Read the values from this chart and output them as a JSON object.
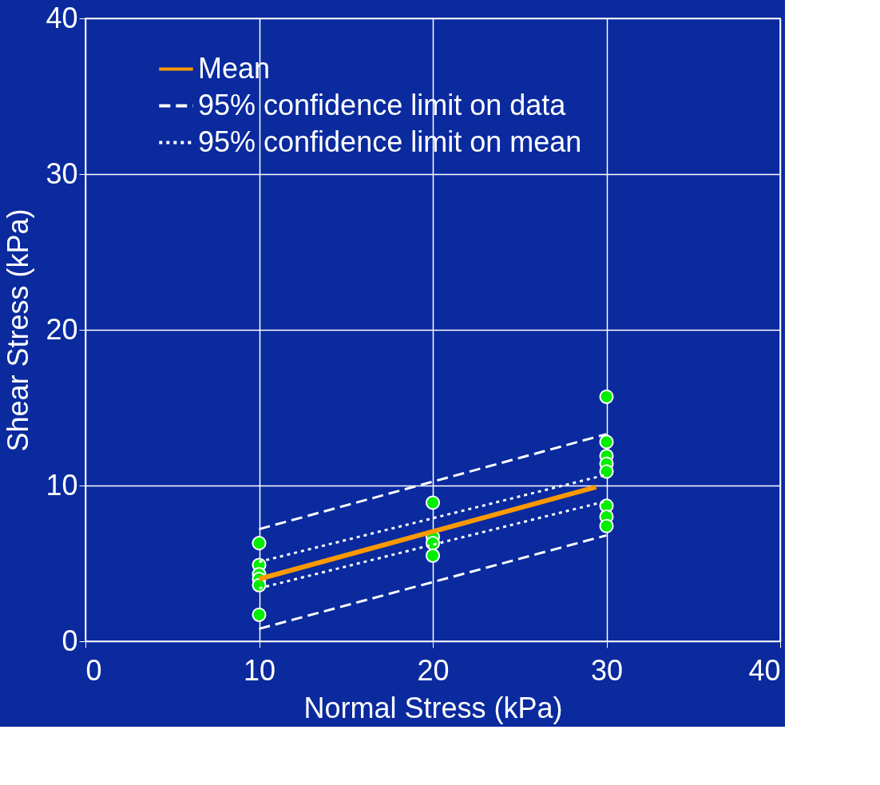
{
  "chart_data": {
    "type": "scatter",
    "xlabel": "Normal Stress (kPa)",
    "ylabel": "Shear Stress (kPa)",
    "xlim": [
      0,
      40
    ],
    "ylim": [
      0,
      40
    ],
    "xticks": [
      0,
      10,
      20,
      30,
      40
    ],
    "yticks": [
      0,
      10,
      20,
      30,
      40
    ],
    "grid": true,
    "legend": "top left",
    "marker": "circle",
    "series": [
      {
        "color": "#00ee00",
        "x": [
          10,
          10,
          10,
          10,
          10,
          10,
          20,
          20,
          20,
          20,
          30,
          30,
          30,
          30,
          30,
          30,
          30,
          30
        ],
        "values": [
          6.3,
          4.9,
          4.3,
          4.0,
          3.6,
          1.7,
          8.9,
          6.7,
          6.3,
          5.5,
          15.7,
          12.8,
          11.9,
          11.4,
          10.9,
          8.7,
          8.0,
          7.4
        ]
      },
      {
        "type": "line",
        "name": "Mean",
        "color": "#ff9900",
        "line_style": "solid",
        "marker": "none",
        "x": [
          10,
          29.4
        ],
        "values": [
          4.0,
          9.9
        ]
      },
      {
        "type": "line",
        "name": "95% confidence limit on data",
        "color": "#ffffff",
        "line_style": "dashed",
        "marker": "none",
        "x": [
          10,
          30
        ],
        "values": [
          7.2,
          13.3
        ]
      },
      {
        "type": "line",
        "color": "#ffffff",
        "line_style": "dashed",
        "marker": "none",
        "x": [
          10,
          30
        ],
        "values": [
          0.8,
          6.8
        ]
      },
      {
        "type": "line",
        "name": "95% confidence limit on mean",
        "color": "#ffffff",
        "line_style": "dotted",
        "marker": "none",
        "x": [
          10,
          30
        ],
        "values": [
          5.1,
          10.7
        ]
      },
      {
        "type": "line",
        "color": "#ffffff",
        "line_style": "dotted",
        "marker": "none",
        "x": [
          10,
          30
        ],
        "values": [
          3.4,
          9.0
        ]
      }
    ]
  }
}
